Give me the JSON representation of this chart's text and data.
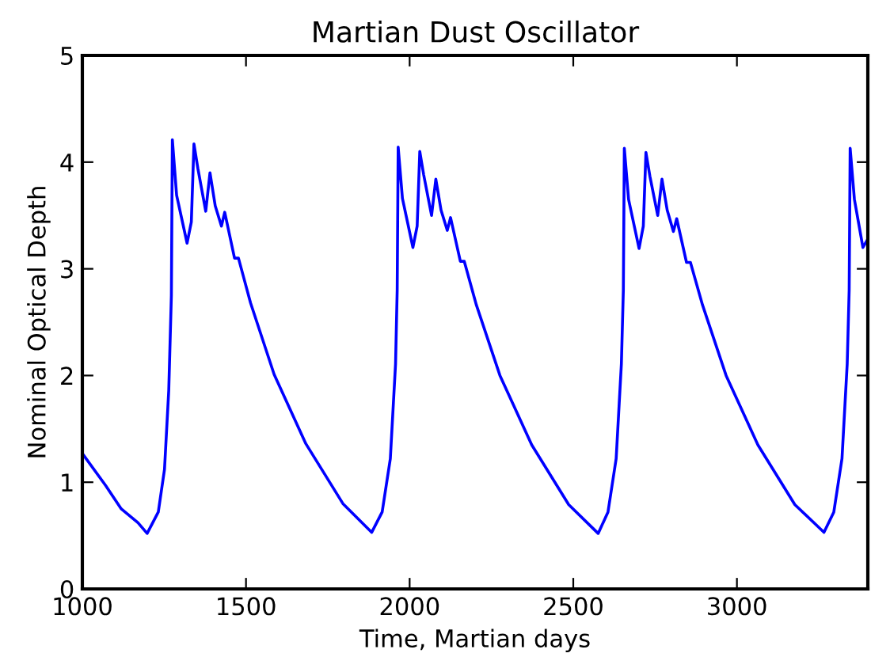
{
  "chart_data": {
    "type": "line",
    "title": "Martian Dust Oscillator",
    "xlabel": "Time, Martian days",
    "ylabel": "Nominal Optical Depth",
    "x": [
      1000,
      1071,
      1119,
      1170,
      1198,
      1232,
      1251,
      1264,
      1272,
      1275,
      1288,
      1320,
      1333,
      1341,
      1353,
      1377,
      1390,
      1406,
      1425,
      1435,
      1465,
      1477,
      1514,
      1586,
      1683,
      1796,
      1884,
      1916,
      1941,
      1957,
      1962,
      1965,
      1978,
      2010,
      2023,
      2031,
      2043,
      2067,
      2080,
      2096,
      2115,
      2125,
      2155,
      2167,
      2204,
      2276,
      2373,
      2486,
      2576,
      2606,
      2631,
      2647,
      2653,
      2656,
      2669,
      2701,
      2714,
      2722,
      2734,
      2758,
      2771,
      2787,
      2806,
      2816,
      2846,
      2858,
      2895,
      2967,
      3064,
      3177,
      3266,
      3296,
      3321,
      3337,
      3343,
      3346,
      3359,
      3385,
      3400
    ],
    "series": [
      {
        "color": "#0000ff",
        "values": [
          1.27,
          0.97,
          0.75,
          0.62,
          0.52,
          0.72,
          1.12,
          1.86,
          2.75,
          4.21,
          3.69,
          3.24,
          3.44,
          4.17,
          3.94,
          3.54,
          3.9,
          3.59,
          3.4,
          3.53,
          3.1,
          3.1,
          2.68,
          2.01,
          1.36,
          0.8,
          0.53,
          0.72,
          1.22,
          2.11,
          2.8,
          4.14,
          3.66,
          3.2,
          3.4,
          4.1,
          3.88,
          3.5,
          3.84,
          3.55,
          3.36,
          3.48,
          3.07,
          3.07,
          2.66,
          2.0,
          1.35,
          0.79,
          0.52,
          0.72,
          1.22,
          2.11,
          2.8,
          4.13,
          3.65,
          3.19,
          3.4,
          4.09,
          3.87,
          3.5,
          3.84,
          3.55,
          3.35,
          3.47,
          3.06,
          3.06,
          2.66,
          2.0,
          1.35,
          0.79,
          0.53,
          0.72,
          1.22,
          2.11,
          2.8,
          4.13,
          3.65,
          3.2,
          3.28
        ]
      }
    ],
    "xlim": [
      1000,
      3400
    ],
    "xticks": [
      1000,
      1500,
      2000,
      2500,
      3000
    ],
    "ylim": [
      0,
      5
    ],
    "yticks": [
      0,
      1,
      2,
      3,
      4,
      5
    ],
    "grid": false,
    "legend": false
  }
}
